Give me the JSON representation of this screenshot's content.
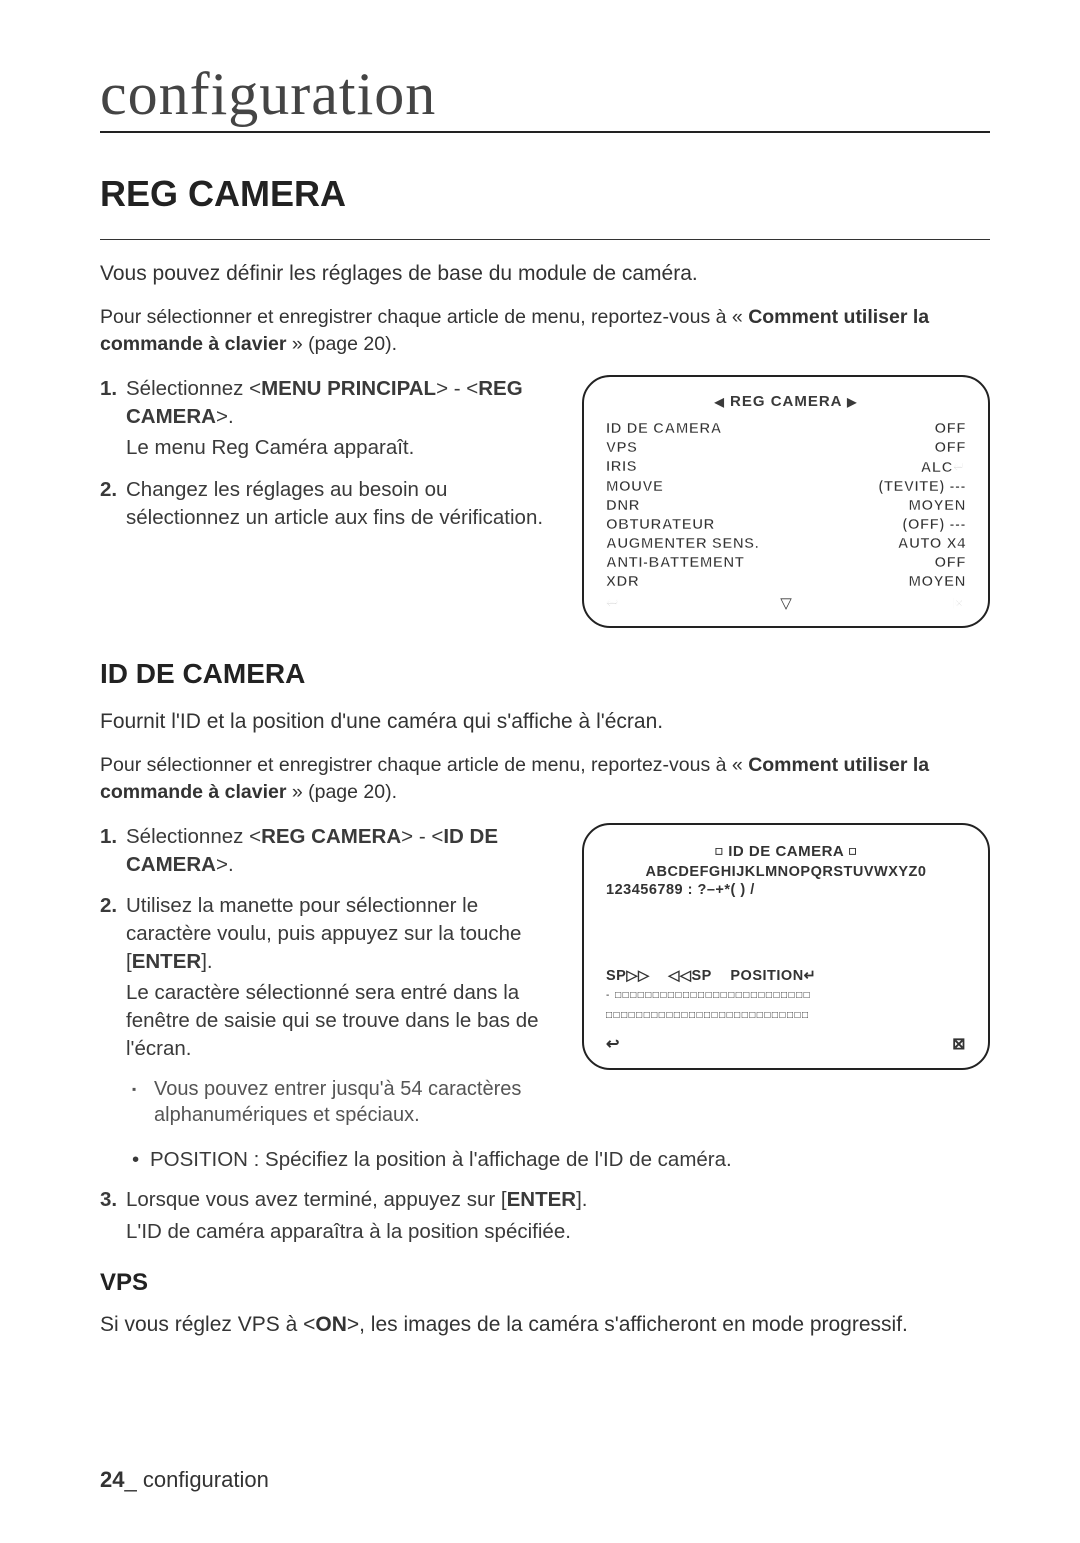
{
  "chapter": "configuration",
  "section_title": "REG CAMERA",
  "intro": "Vous pouvez définir les réglages de base du module de caméra.",
  "intro_note_prefix": "Pour sélectionner et enregistrer chaque article de menu, reportez-vous à « ",
  "intro_note_bold": "Comment utiliser la commande à clavier",
  "intro_note_suffix": " » (page 20).",
  "step1_a": "Sélectionnez <",
  "step1_b": "MENU PRINCIPAL",
  "step1_c": "> - <",
  "step1_d": "REG CAMERA",
  "step1_e": ">.",
  "step1_sub": "Le menu Reg Caméra apparaît.",
  "step2": "Changez les réglages au besoin ou sélectionnez un article aux fins de vérification.",
  "screen1": {
    "title": "REG CAMERA",
    "rows": [
      {
        "l": "ID DE CAMERA",
        "r": "OFF"
      },
      {
        "l": "VPS",
        "r": "OFF"
      },
      {
        "l": "IRIS",
        "r": "ALC↵"
      },
      {
        "l": "MOUVE",
        "r": "(TEVITE) ---"
      },
      {
        "l": "DNR",
        "r": "MOYEN"
      },
      {
        "l": "OBTURATEUR",
        "r": "(OFF) ---"
      },
      {
        "l": "AUGMENTER SENS.",
        "r": "AUTO X4"
      },
      {
        "l": "ANTI-BATTEMENT",
        "r": "OFF"
      },
      {
        "l": "XDR",
        "r": "MOYEN"
      }
    ],
    "back": "↩",
    "down": "▽",
    "close": "⊠"
  },
  "id_title": "ID DE CAMERA",
  "id_intro": "Fournit l'ID et la position d'une caméra qui s'affiche à l'écran.",
  "id_step1_a": "Sélectionnez  <",
  "id_step1_b": "REG CAMERA",
  "id_step1_c": "> - <",
  "id_step1_d": "ID DE CAMERA",
  "id_step1_e": ">.",
  "id_step2_a": "Utilisez la manette pour sélectionner le caractère voulu, puis appuyez sur la touche [",
  "id_step2_b": "ENTER",
  "id_step2_c": "].",
  "id_step2_sub": "Le caractère sélectionné sera entré dans la fenêtre de saisie qui se trouve dans le bas de l'écran.",
  "id_note": "Vous pouvez entrer jusqu'à 54 caractères alphanumériques et spéciaux.",
  "id_bullet": "POSITION : Spécifiez la position à l'affichage de l'ID de caméra.",
  "id_step3_a": "Lorsque vous avez terminé, appuyez sur [",
  "id_step3_b": "ENTER",
  "id_step3_c": "].",
  "id_step3_sub": "L'ID de caméra apparaîtra à la position spécifiée.",
  "screen2": {
    "title": "ID DE CAMERA",
    "alpha": "ABCDEFGHIJKLMNOPQRSTUVWXYZ0",
    "nums": "123456789 : ?–+*( ) /",
    "sp1": "SP▷▷",
    "sp2": "◁◁SP",
    "pos": "POSITION↵",
    "entry1": "- □□□□□□□□□□□□□□□□□□□□□□□□□□",
    "entry2": "□□□□□□□□□□□□□□□□□□□□□□□□□□□",
    "back": "↩",
    "close": "⊠"
  },
  "vps_title": "VPS",
  "vps_body_a": "Si vous réglez VPS à <",
  "vps_body_b": "ON",
  "vps_body_c": ">, les images de la caméra s'afficheront en mode progressif.",
  "footer_page": "24",
  "footer_sep": "_ ",
  "footer_label": "configuration"
}
